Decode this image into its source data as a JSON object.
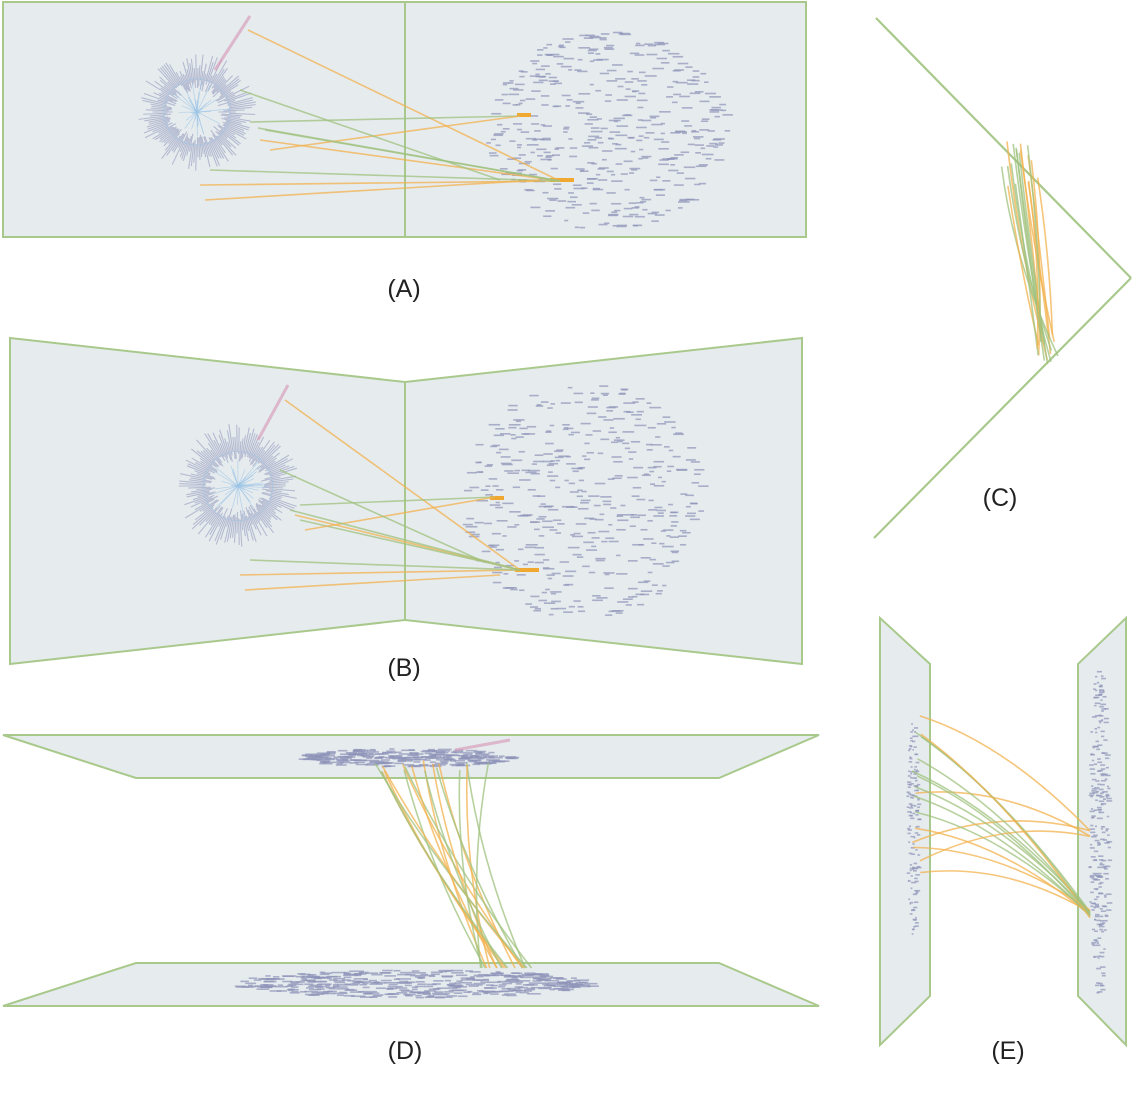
{
  "colors": {
    "plane_fill": "#e6ebee",
    "plane_border": "#a9c98c",
    "link_orange": "#f2b24d",
    "link_green": "#9fc27e",
    "tree_blue": "#9bc4e6",
    "node_gray": "#8d93b8",
    "highlight": "#f0a830",
    "pink_branch": "#d9a0bd"
  },
  "panels": [
    {
      "id": "A",
      "label": "(A)"
    },
    {
      "id": "B",
      "label": "(B)"
    },
    {
      "id": "C",
      "label": "(C)"
    },
    {
      "id": "D",
      "label": "(D)"
    },
    {
      "id": "E",
      "label": "(E)"
    }
  ]
}
